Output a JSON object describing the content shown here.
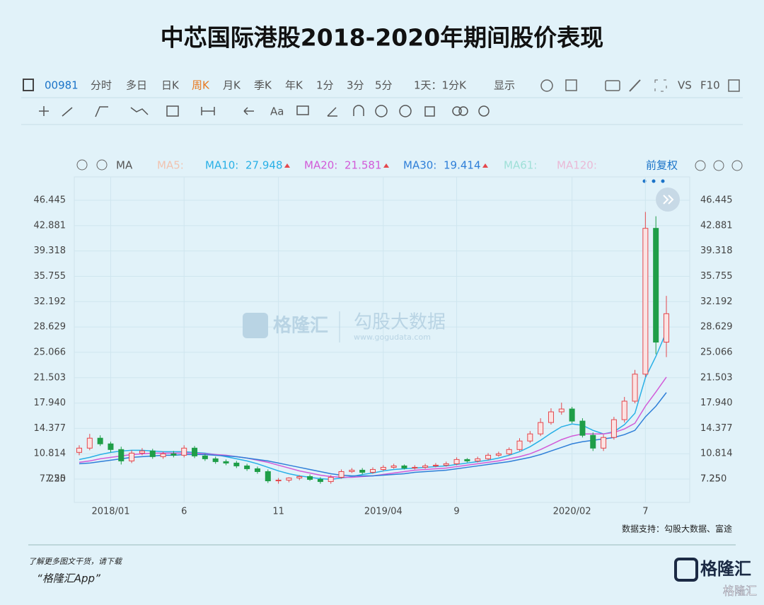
{
  "header": {
    "title": "中芯国际港股2018-2020年期间股价表现"
  },
  "toolbar": {
    "code": "00981",
    "row1": [
      "分时",
      "多日",
      "日K",
      "周K",
      "月K",
      "季K",
      "年K",
      "1分",
      "3分",
      "5分",
      "1天：1分K",
      "显示",
      "VS",
      "F10"
    ],
    "row2": [
      "Aa"
    ],
    "ma": "MA",
    "ma_faded": [
      "MA5:",
      "MA61:",
      "MA120:"
    ],
    "adjust": "前复权"
  },
  "watermark": {
    "brand": "格隆汇",
    "data": "勾股大数据",
    "url": "www.gogudata.com"
  },
  "chart_data": {
    "type": "candlestick",
    "categories": [
      null,
      null,
      null,
      "2018/01",
      null,
      null,
      null,
      null,
      null,
      null,
      "6",
      null,
      null,
      null,
      null,
      null,
      null,
      null,
      null,
      "11",
      null,
      null,
      null,
      null,
      null,
      null,
      null,
      null,
      null,
      "2019/04",
      null,
      null,
      null,
      null,
      null,
      null,
      "9",
      null,
      null,
      null,
      null,
      null,
      null,
      null,
      null,
      null,
      null,
      "2020/02",
      null,
      null,
      null,
      null,
      null,
      null,
      "7",
      null,
      null
    ],
    "open": [
      11.0,
      11.6,
      13.0,
      12.2,
      11.4,
      9.8,
      10.9,
      11.2,
      10.4,
      10.8,
      10.6,
      11.6,
      10.5,
      10.1,
      9.7,
      9.5,
      9.1,
      8.7,
      8.3,
      7.0,
      7.1,
      7.4,
      7.6,
      7.2,
      6.9,
      7.5,
      8.3,
      8.5,
      8.2,
      8.6,
      8.9,
      9.1,
      8.8,
      8.9,
      9.1,
      9.2,
      9.4,
      10.0,
      9.8,
      10.1,
      10.6,
      10.8,
      11.4,
      12.6,
      13.6,
      15.2,
      16.7,
      17.1,
      15.4,
      13.4,
      11.6,
      13.1,
      15.6,
      18.2,
      22.0,
      42.5,
      26.5
    ],
    "high": [
      12.0,
      13.6,
      13.4,
      12.5,
      11.8,
      11.3,
      11.6,
      11.5,
      11.1,
      11.2,
      12.0,
      11.9,
      10.8,
      10.4,
      10.0,
      9.8,
      9.4,
      9.0,
      8.6,
      7.4,
      7.5,
      7.8,
      7.9,
      7.5,
      7.8,
      8.6,
      8.8,
      8.8,
      8.9,
      9.2,
      9.4,
      9.3,
      9.2,
      9.4,
      9.5,
      9.7,
      10.3,
      10.2,
      10.4,
      10.9,
      11.1,
      11.7,
      13.0,
      14.0,
      15.8,
      17.2,
      18.0,
      17.4,
      15.8,
      13.8,
      13.5,
      16.0,
      18.8,
      22.6,
      44.8,
      44.2,
      33.0
    ],
    "low": [
      10.6,
      11.3,
      11.9,
      11.0,
      9.3,
      9.5,
      10.6,
      10.1,
      10.1,
      10.3,
      10.3,
      10.2,
      9.8,
      9.4,
      9.2,
      8.8,
      8.4,
      8.0,
      6.7,
      6.6,
      6.8,
      7.1,
      7.0,
      6.6,
      6.6,
      7.3,
      8.1,
      7.9,
      8.0,
      8.4,
      8.7,
      8.6,
      8.6,
      8.7,
      8.9,
      9.0,
      9.2,
      9.6,
      9.6,
      9.9,
      10.4,
      10.6,
      11.2,
      12.3,
      13.3,
      14.9,
      16.3,
      15.1,
      13.1,
      11.2,
      11.2,
      12.8,
      15.2,
      17.9,
      21.6,
      24.8,
      24.4
    ],
    "close": [
      11.6,
      13.0,
      12.2,
      11.4,
      9.8,
      10.9,
      11.2,
      10.4,
      10.8,
      10.6,
      11.6,
      10.5,
      10.1,
      9.7,
      9.5,
      9.1,
      8.7,
      8.3,
      7.0,
      7.1,
      7.4,
      7.6,
      7.2,
      6.9,
      7.5,
      8.3,
      8.5,
      8.2,
      8.6,
      8.9,
      9.1,
      8.8,
      8.9,
      9.1,
      9.2,
      9.4,
      10.0,
      9.8,
      10.1,
      10.6,
      10.8,
      11.4,
      12.6,
      13.6,
      15.2,
      16.7,
      17.1,
      15.4,
      13.4,
      11.6,
      13.1,
      15.6,
      18.2,
      22.0,
      42.5,
      26.5,
      30.5
    ],
    "up_color": "#e5484d",
    "down_color": "#1f9e48",
    "series": [
      {
        "name": "MA10:",
        "color": "#29b0e6",
        "values": [
          10.0,
          10.3,
          10.7,
          11.0,
          11.2,
          11.3,
          11.3,
          11.2,
          11.1,
          11.1,
          11.1,
          11.0,
          10.9,
          10.7,
          10.4,
          10.1,
          9.8,
          9.4,
          8.9,
          8.4,
          8.0,
          7.7,
          7.5,
          7.3,
          7.2,
          7.4,
          7.6,
          7.9,
          8.1,
          8.4,
          8.6,
          8.7,
          8.8,
          8.9,
          9.0,
          9.1,
          9.3,
          9.5,
          9.7,
          9.9,
          10.2,
          10.6,
          11.1,
          11.8,
          12.7,
          13.7,
          14.6,
          15.0,
          14.8,
          14.1,
          13.6,
          13.9,
          14.9,
          16.5,
          21.5,
          24.5,
          27.948
        ]
      },
      {
        "name": "MA20:",
        "color": "#d25ad8",
        "values": [
          9.6,
          9.8,
          10.1,
          10.3,
          10.5,
          10.7,
          10.8,
          10.9,
          10.9,
          10.9,
          10.9,
          10.9,
          10.8,
          10.7,
          10.6,
          10.4,
          10.2,
          9.9,
          9.6,
          9.2,
          8.8,
          8.4,
          8.1,
          7.8,
          7.6,
          7.5,
          7.5,
          7.6,
          7.7,
          7.9,
          8.1,
          8.3,
          8.5,
          8.6,
          8.7,
          8.8,
          9.0,
          9.2,
          9.4,
          9.6,
          9.8,
          10.1,
          10.4,
          10.8,
          11.4,
          12.1,
          12.8,
          13.3,
          13.6,
          13.6,
          13.6,
          13.8,
          14.3,
          15.1,
          17.5,
          19.5,
          21.581
        ]
      },
      {
        "name": "MA30:",
        "color": "#2f7fd8",
        "values": [
          9.4,
          9.5,
          9.7,
          9.9,
          10.1,
          10.3,
          10.4,
          10.5,
          10.6,
          10.6,
          10.7,
          10.7,
          10.7,
          10.6,
          10.5,
          10.4,
          10.2,
          10.0,
          9.8,
          9.5,
          9.2,
          8.9,
          8.6,
          8.3,
          8.0,
          7.8,
          7.7,
          7.7,
          7.7,
          7.8,
          7.9,
          8.0,
          8.2,
          8.3,
          8.4,
          8.5,
          8.7,
          8.9,
          9.1,
          9.3,
          9.5,
          9.7,
          10.0,
          10.3,
          10.7,
          11.2,
          11.7,
          12.2,
          12.5,
          12.7,
          12.9,
          13.1,
          13.5,
          14.1,
          16.0,
          17.5,
          19.414
        ]
      }
    ],
    "ylim": [
      3.97,
      49.73
    ],
    "yticks": [
      7.25,
      {
        "value": 7.25,
        "label": "7.250"
      },
      10.814,
      14.377,
      {
        "value": 17.94,
        "label": "17.940"
      },
      21.503,
      25.066,
      28.629,
      32.192,
      35.755,
      39.318,
      42.881,
      46.445
    ],
    "grid": true
  },
  "footer": {
    "source": "数据支持：勾股大数据、富途",
    "promo": "了解更多图文干货，请下载",
    "app": "“格隆汇App”",
    "logo": "格隆汇",
    "corner": "格隆汇"
  }
}
